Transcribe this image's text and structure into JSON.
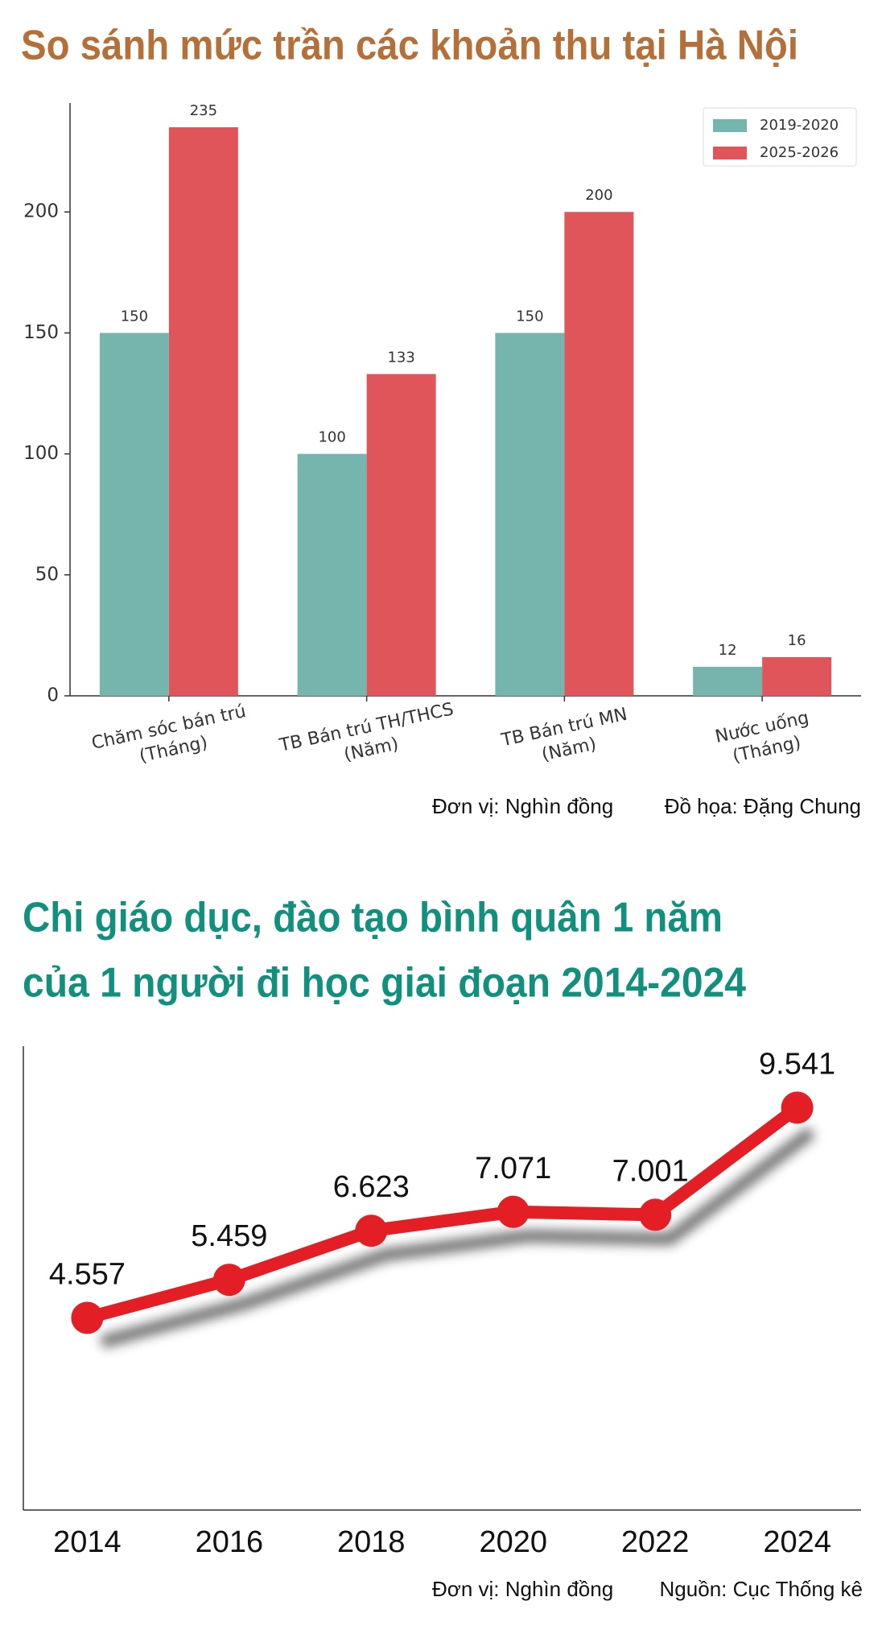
{
  "chart_data": [
    {
      "type": "bar",
      "title": "So sánh mức trần các khoản thu tại Hà Nội",
      "categories": [
        [
          "Chăm sóc bán trú",
          "(Tháng)"
        ],
        [
          "TB Bán trú TH/THCS",
          "(Năm)"
        ],
        [
          "TB Bán trú MN",
          "(Năm)"
        ],
        [
          "Nước uống",
          "(Tháng)"
        ]
      ],
      "series": [
        {
          "name": "2019-2020",
          "color": "#76b5ae",
          "values": [
            150,
            100,
            150,
            12
          ]
        },
        {
          "name": "2025-2026",
          "color": "#e0555a",
          "values": [
            235,
            133,
            200,
            16
          ]
        }
      ],
      "ylim": [
        0,
        245
      ],
      "yticks": [
        0,
        50,
        100,
        150,
        200
      ],
      "grid": false,
      "legend": "upper-right",
      "annotations": [
        "Đơn vị: Nghìn đồng",
        "Đồ họa: Đặng Chung"
      ]
    },
    {
      "type": "line",
      "title": [
        "Chi giáo dục, đào tạo bình quân 1 năm",
        "của 1 người đi học giai đoạn 2014-2024"
      ],
      "x": [
        2014,
        2016,
        2018,
        2020,
        2022,
        2024
      ],
      "values": [
        4557,
        5459,
        6623,
        7071,
        7001,
        9541
      ],
      "value_labels": [
        "4.557",
        "5.459",
        "6.623",
        "7.071",
        "7.001",
        "9.541"
      ],
      "color": "#e31e24",
      "xlim": [
        2013.1,
        2024.9
      ],
      "xticks": [
        2014,
        2016,
        2018,
        2020,
        2022,
        2024
      ],
      "ylim": [
        0,
        11000
      ],
      "grid": false,
      "annotations": [
        "Đơn vị: Nghìn đồng",
        "Nguồn: Cục Thống kê"
      ]
    }
  ]
}
